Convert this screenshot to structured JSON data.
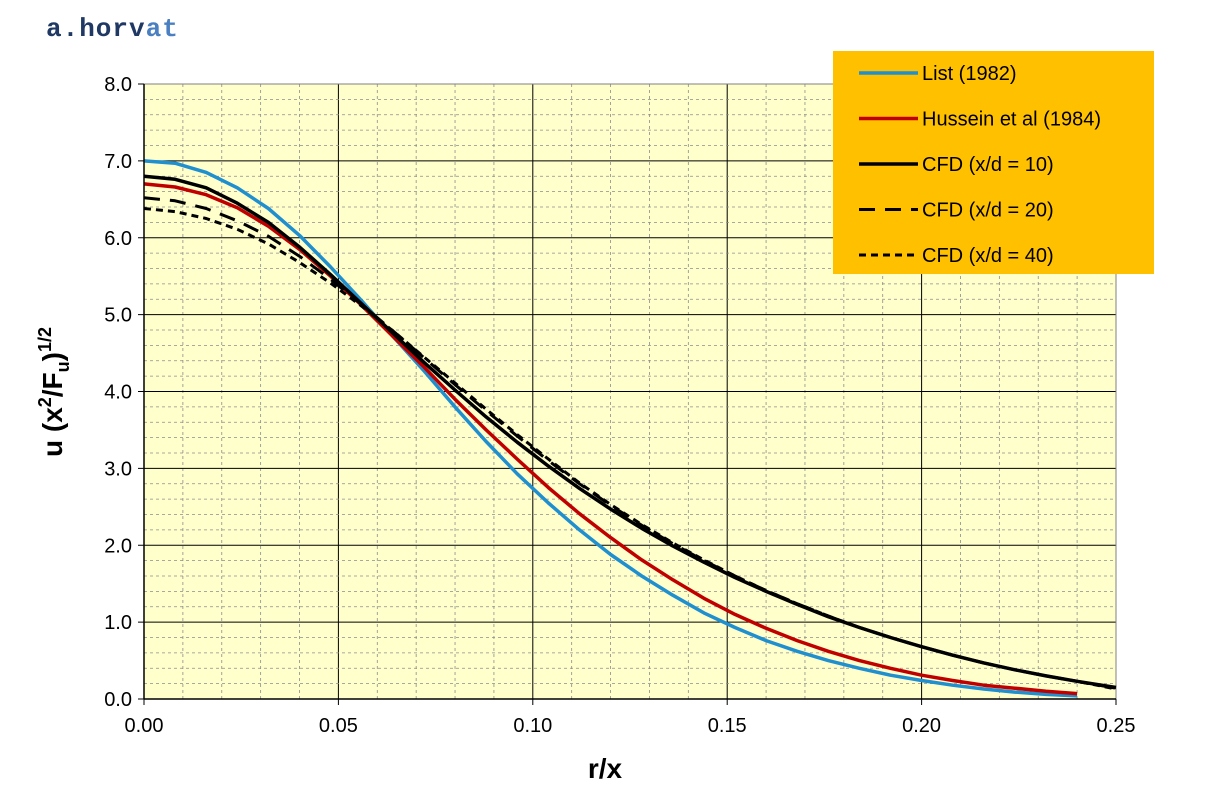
{
  "brand": {
    "part1": "a.horv",
    "part2": "at"
  },
  "chart_data": {
    "type": "line",
    "xlabel": "r/x",
    "ylabel_parts": {
      "lead": "u (x",
      "sup1": "2",
      "mid": "/F",
      "sub": "u",
      "tail": ")",
      "sup2": "1/2"
    },
    "xlim": [
      0,
      0.25
    ],
    "ylim": [
      0,
      8
    ],
    "x_ticks": [
      "0.00",
      "0.05",
      "0.10",
      "0.15",
      "0.20",
      "0.25"
    ],
    "y_ticks": [
      "0.0",
      "1.0",
      "2.0",
      "3.0",
      "4.0",
      "5.0",
      "6.0",
      "7.0",
      "8.0"
    ],
    "grid": true,
    "legend_position": "top-right",
    "series": [
      {
        "name": "List (1982)",
        "color": "#1f8fcf",
        "dash": "solid",
        "points": [
          [
            0,
            7.0
          ],
          [
            0.008,
            6.97
          ],
          [
            0.016,
            6.85
          ],
          [
            0.024,
            6.65
          ],
          [
            0.032,
            6.38
          ],
          [
            0.04,
            6.03
          ],
          [
            0.048,
            5.62
          ],
          [
            0.056,
            5.18
          ],
          [
            0.064,
            4.72
          ],
          [
            0.072,
            4.27
          ],
          [
            0.08,
            3.8
          ],
          [
            0.088,
            3.35
          ],
          [
            0.096,
            2.93
          ],
          [
            0.104,
            2.55
          ],
          [
            0.112,
            2.2
          ],
          [
            0.12,
            1.88
          ],
          [
            0.128,
            1.6
          ],
          [
            0.136,
            1.35
          ],
          [
            0.144,
            1.12
          ],
          [
            0.152,
            0.93
          ],
          [
            0.16,
            0.76
          ],
          [
            0.168,
            0.62
          ],
          [
            0.176,
            0.5
          ],
          [
            0.184,
            0.4
          ],
          [
            0.192,
            0.31
          ],
          [
            0.2,
            0.24
          ],
          [
            0.208,
            0.18
          ],
          [
            0.216,
            0.13
          ],
          [
            0.224,
            0.09
          ],
          [
            0.232,
            0.06
          ],
          [
            0.24,
            0.04
          ]
        ]
      },
      {
        "name": "Hussein et al (1984)",
        "color": "#c00000",
        "dash": "solid",
        "points": [
          [
            0,
            6.7
          ],
          [
            0.008,
            6.66
          ],
          [
            0.016,
            6.56
          ],
          [
            0.024,
            6.39
          ],
          [
            0.032,
            6.15
          ],
          [
            0.04,
            5.85
          ],
          [
            0.048,
            5.5
          ],
          [
            0.056,
            5.12
          ],
          [
            0.064,
            4.72
          ],
          [
            0.072,
            4.32
          ],
          [
            0.08,
            3.9
          ],
          [
            0.088,
            3.5
          ],
          [
            0.096,
            3.12
          ],
          [
            0.104,
            2.75
          ],
          [
            0.112,
            2.41
          ],
          [
            0.12,
            2.1
          ],
          [
            0.128,
            1.81
          ],
          [
            0.136,
            1.55
          ],
          [
            0.144,
            1.31
          ],
          [
            0.152,
            1.1
          ],
          [
            0.16,
            0.92
          ],
          [
            0.168,
            0.76
          ],
          [
            0.176,
            0.62
          ],
          [
            0.184,
            0.5
          ],
          [
            0.192,
            0.4
          ],
          [
            0.2,
            0.31
          ],
          [
            0.208,
            0.24
          ],
          [
            0.216,
            0.18
          ],
          [
            0.224,
            0.14
          ],
          [
            0.232,
            0.1
          ],
          [
            0.24,
            0.07
          ]
        ]
      },
      {
        "name": "CFD (x/d = 10)",
        "color": "#000000",
        "dash": "solid",
        "points": [
          [
            0,
            6.8
          ],
          [
            0.008,
            6.76
          ],
          [
            0.016,
            6.65
          ],
          [
            0.024,
            6.45
          ],
          [
            0.032,
            6.2
          ],
          [
            0.04,
            5.88
          ],
          [
            0.048,
            5.52
          ],
          [
            0.056,
            5.14
          ],
          [
            0.064,
            4.76
          ],
          [
            0.072,
            4.38
          ],
          [
            0.08,
            4.02
          ],
          [
            0.088,
            3.67
          ],
          [
            0.096,
            3.34
          ],
          [
            0.104,
            3.03
          ],
          [
            0.112,
            2.74
          ],
          [
            0.12,
            2.47
          ],
          [
            0.128,
            2.22
          ],
          [
            0.136,
            1.99
          ],
          [
            0.144,
            1.78
          ],
          [
            0.152,
            1.58
          ],
          [
            0.16,
            1.4
          ],
          [
            0.168,
            1.23
          ],
          [
            0.176,
            1.07
          ],
          [
            0.184,
            0.93
          ],
          [
            0.192,
            0.8
          ],
          [
            0.2,
            0.68
          ],
          [
            0.208,
            0.57
          ],
          [
            0.216,
            0.47
          ],
          [
            0.224,
            0.38
          ],
          [
            0.232,
            0.3
          ],
          [
            0.24,
            0.23
          ],
          [
            0.25,
            0.15
          ]
        ]
      },
      {
        "name": "CFD (x/d = 20)",
        "color": "#000000",
        "dash": "long",
        "points": [
          [
            0,
            6.52
          ],
          [
            0.008,
            6.48
          ],
          [
            0.016,
            6.38
          ],
          [
            0.024,
            6.22
          ],
          [
            0.032,
            6.02
          ],
          [
            0.04,
            5.76
          ],
          [
            0.048,
            5.46
          ],
          [
            0.056,
            5.13
          ],
          [
            0.064,
            4.79
          ],
          [
            0.072,
            4.44
          ],
          [
            0.08,
            4.09
          ],
          [
            0.088,
            3.75
          ],
          [
            0.096,
            3.42
          ],
          [
            0.104,
            3.1
          ],
          [
            0.112,
            2.8
          ],
          [
            0.12,
            2.52
          ],
          [
            0.128,
            2.26
          ],
          [
            0.136,
            2.02
          ],
          [
            0.144,
            1.8
          ],
          [
            0.152,
            1.6
          ],
          [
            0.16,
            1.41
          ],
          [
            0.168,
            1.24
          ],
          [
            0.176,
            1.08
          ],
          [
            0.184,
            0.93
          ],
          [
            0.192,
            0.8
          ],
          [
            0.2,
            0.68
          ],
          [
            0.208,
            0.57
          ],
          [
            0.216,
            0.47
          ],
          [
            0.224,
            0.38
          ],
          [
            0.232,
            0.3
          ],
          [
            0.24,
            0.23
          ],
          [
            0.25,
            0.14
          ]
        ]
      },
      {
        "name": "CFD (x/d = 40)",
        "color": "#000000",
        "dash": "short",
        "points": [
          [
            0,
            6.38
          ],
          [
            0.008,
            6.34
          ],
          [
            0.016,
            6.25
          ],
          [
            0.024,
            6.11
          ],
          [
            0.032,
            5.92
          ],
          [
            0.04,
            5.68
          ],
          [
            0.048,
            5.41
          ],
          [
            0.056,
            5.11
          ],
          [
            0.064,
            4.79
          ],
          [
            0.072,
            4.45
          ],
          [
            0.08,
            4.11
          ],
          [
            0.088,
            3.77
          ],
          [
            0.096,
            3.44
          ],
          [
            0.104,
            3.12
          ],
          [
            0.112,
            2.81
          ],
          [
            0.12,
            2.53
          ],
          [
            0.128,
            2.27
          ],
          [
            0.136,
            2.03
          ],
          [
            0.144,
            1.81
          ],
          [
            0.152,
            1.6
          ],
          [
            0.16,
            1.41
          ],
          [
            0.168,
            1.24
          ],
          [
            0.176,
            1.08
          ],
          [
            0.184,
            0.93
          ],
          [
            0.192,
            0.8
          ],
          [
            0.2,
            0.68
          ],
          [
            0.208,
            0.57
          ],
          [
            0.216,
            0.47
          ],
          [
            0.224,
            0.38
          ],
          [
            0.232,
            0.3
          ],
          [
            0.24,
            0.23
          ],
          [
            0.25,
            0.13
          ]
        ]
      }
    ]
  },
  "colors": {
    "plot_bg": "#ffffcc",
    "legend_bg": "#ffc000"
  }
}
